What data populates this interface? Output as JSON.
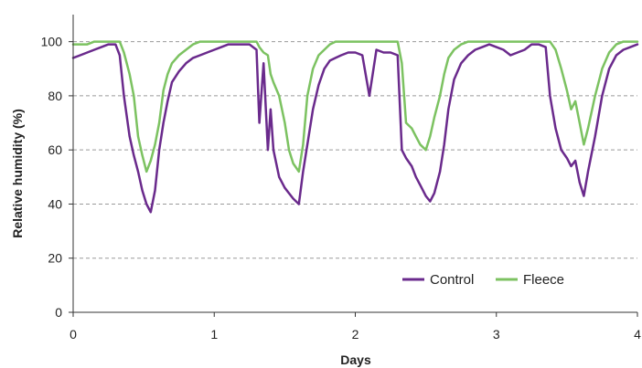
{
  "chart_data": {
    "type": "line",
    "xlabel": "Days",
    "ylabel": "Relative humidity (%)",
    "xlim": [
      0,
      4
    ],
    "ylim": [
      0,
      110
    ],
    "xticks": [
      "0",
      "1",
      "2",
      "3",
      "4"
    ],
    "yticks": [
      "0",
      "20",
      "40",
      "60",
      "80",
      "100"
    ],
    "grid": "horizontal dashed",
    "legend": "bottom-right",
    "series": [
      {
        "name": "Control",
        "color": "#6a2a8c",
        "x": [
          0,
          0.05,
          0.1,
          0.15,
          0.2,
          0.25,
          0.3,
          0.33,
          0.36,
          0.4,
          0.43,
          0.46,
          0.49,
          0.52,
          0.55,
          0.58,
          0.61,
          0.64,
          0.67,
          0.7,
          0.75,
          0.8,
          0.85,
          0.9,
          0.95,
          1.0,
          1.05,
          1.1,
          1.15,
          1.2,
          1.25,
          1.3,
          1.32,
          1.35,
          1.38,
          1.4,
          1.42,
          1.46,
          1.5,
          1.53,
          1.56,
          1.6,
          1.63,
          1.66,
          1.7,
          1.74,
          1.78,
          1.82,
          1.86,
          1.9,
          1.95,
          2.0,
          2.05,
          2.1,
          2.15,
          2.2,
          2.25,
          2.3,
          2.33,
          2.36,
          2.4,
          2.43,
          2.46,
          2.5,
          2.53,
          2.56,
          2.6,
          2.63,
          2.66,
          2.7,
          2.75,
          2.8,
          2.85,
          2.9,
          2.95,
          3.0,
          3.05,
          3.1,
          3.15,
          3.2,
          3.25,
          3.3,
          3.35,
          3.38,
          3.42,
          3.46,
          3.5,
          3.53,
          3.56,
          3.59,
          3.62,
          3.65,
          3.7,
          3.75,
          3.8,
          3.85,
          3.9,
          3.95,
          4.0
        ],
        "values": [
          94,
          95,
          96,
          97,
          98,
          99,
          99,
          95,
          80,
          65,
          58,
          52,
          45,
          40,
          37,
          45,
          60,
          70,
          78,
          85,
          89,
          92,
          94,
          95,
          96,
          97,
          98,
          99,
          99,
          99,
          99,
          97,
          70,
          92,
          60,
          75,
          60,
          50,
          46,
          44,
          42,
          40,
          52,
          62,
          75,
          84,
          90,
          93,
          94,
          95,
          96,
          96,
          95,
          80,
          97,
          96,
          96,
          95,
          60,
          57,
          54,
          50,
          47,
          43,
          41,
          44,
          52,
          62,
          75,
          86,
          92,
          95,
          97,
          98,
          99,
          98,
          97,
          95,
          96,
          97,
          99,
          99,
          98,
          80,
          68,
          60,
          57,
          54,
          56,
          48,
          43,
          52,
          65,
          80,
          90,
          95,
          97,
          98,
          99
        ]
      },
      {
        "name": "Fleece",
        "color": "#7cc261",
        "x": [
          0,
          0.05,
          0.1,
          0.15,
          0.2,
          0.25,
          0.3,
          0.33,
          0.36,
          0.4,
          0.43,
          0.46,
          0.49,
          0.52,
          0.55,
          0.58,
          0.61,
          0.64,
          0.67,
          0.7,
          0.75,
          0.8,
          0.85,
          0.9,
          0.95,
          1.0,
          1.05,
          1.1,
          1.15,
          1.2,
          1.25,
          1.3,
          1.32,
          1.35,
          1.38,
          1.4,
          1.42,
          1.46,
          1.5,
          1.53,
          1.56,
          1.6,
          1.63,
          1.66,
          1.7,
          1.74,
          1.78,
          1.82,
          1.86,
          1.9,
          1.95,
          2.0,
          2.05,
          2.1,
          2.15,
          2.2,
          2.25,
          2.3,
          2.33,
          2.36,
          2.4,
          2.43,
          2.46,
          2.5,
          2.53,
          2.56,
          2.6,
          2.63,
          2.66,
          2.7,
          2.75,
          2.8,
          2.85,
          2.9,
          2.95,
          3.0,
          3.05,
          3.1,
          3.15,
          3.2,
          3.25,
          3.3,
          3.35,
          3.38,
          3.42,
          3.46,
          3.5,
          3.53,
          3.56,
          3.59,
          3.62,
          3.65,
          3.7,
          3.75,
          3.8,
          3.85,
          3.9,
          3.95,
          4.0
        ],
        "values": [
          99,
          99,
          99,
          100,
          100,
          100,
          100,
          100,
          96,
          88,
          80,
          65,
          58,
          52,
          56,
          62,
          70,
          82,
          88,
          92,
          95,
          97,
          99,
          100,
          100,
          100,
          100,
          100,
          100,
          100,
          100,
          100,
          98,
          96,
          95,
          88,
          85,
          80,
          70,
          60,
          55,
          52,
          62,
          80,
          90,
          95,
          97,
          99,
          100,
          100,
          100,
          100,
          100,
          100,
          100,
          100,
          100,
          100,
          92,
          70,
          68,
          65,
          62,
          60,
          65,
          72,
          80,
          88,
          94,
          97,
          99,
          100,
          100,
          100,
          100,
          100,
          100,
          100,
          100,
          100,
          100,
          100,
          100,
          100,
          97,
          90,
          82,
          75,
          78,
          70,
          62,
          68,
          80,
          90,
          96,
          99,
          100,
          100,
          100
        ]
      }
    ]
  }
}
